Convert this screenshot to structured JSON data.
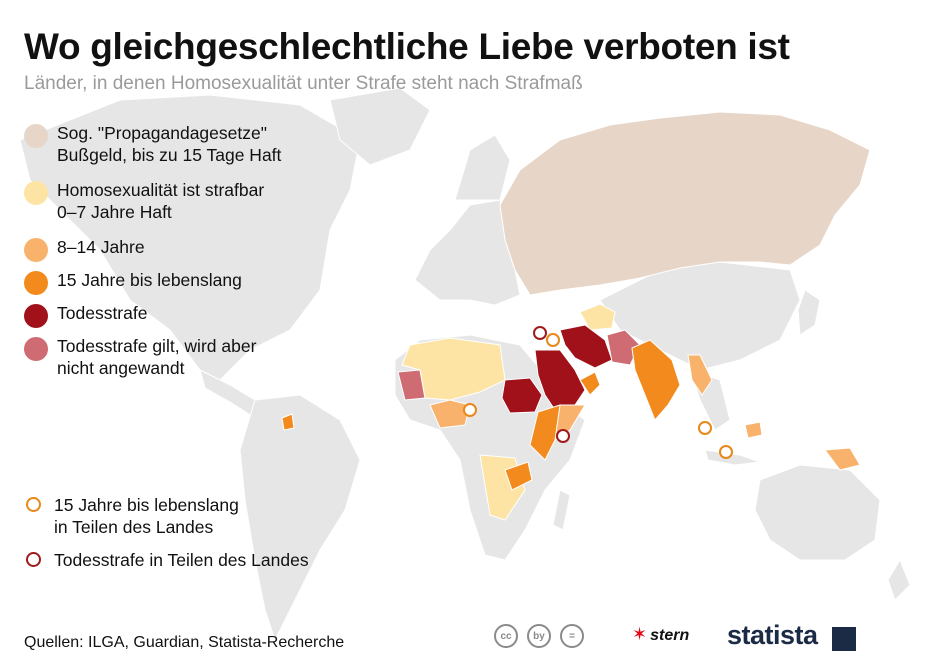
{
  "title": "Wo gleichgeschlechtliche Liebe verboten ist",
  "subtitle": "Länder, in denen Homosexualität unter Strafe steht nach Strafmaß",
  "legend": [
    {
      "line1": "Sog. \"Propagandagesetze\"",
      "line2": "Bußgeld, bis zu 15 Tage Haft",
      "color": "#e7d6c7"
    },
    {
      "line1": "Homosexualität ist strafbar",
      "line2": "0–7 Jahre Haft",
      "color": "#fde3a4"
    },
    {
      "line1": "8–14 Jahre",
      "line2": "",
      "color": "#f9b26b"
    },
    {
      "line1": "15 Jahre bis lebenslang",
      "line2": "",
      "color": "#f28a1d"
    },
    {
      "line1": "Todesstrafe",
      "line2": "",
      "color": "#a1111a"
    },
    {
      "line1": "Todesstrafe gilt, wird aber",
      "line2": "nicht angewandt",
      "color": "#cf6b72"
    }
  ],
  "markers_legend": [
    {
      "line1": "15 Jahre bis lebenslang",
      "line2": "in Teilen des Landes",
      "color": "#e8871a"
    },
    {
      "line1": "Todesstrafe in Teilen des Landes",
      "line2": "",
      "color": "#9e1b1b"
    }
  ],
  "base_land_color": "#e6e6e6",
  "source": "Quellen: ILGA, Guardian, Statista-Recherche",
  "license_icons": [
    "cc",
    "by",
    "="
  ],
  "brand": {
    "stern": "stern",
    "statista": "statista"
  }
}
